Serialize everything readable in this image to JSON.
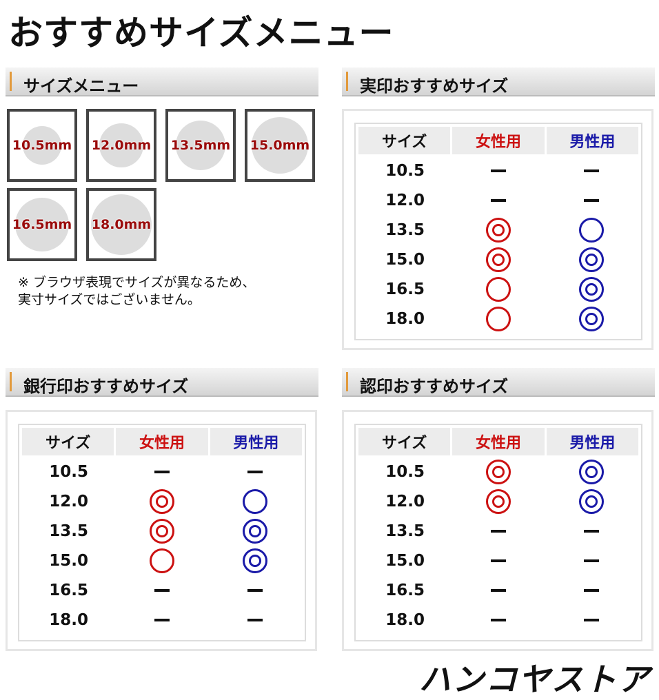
{
  "title": "おすすめサイズメニュー",
  "size_menu": {
    "heading": "サイズメニュー",
    "sizes": [
      "10.5mm",
      "12.0mm",
      "13.5mm",
      "15.0mm",
      "16.5mm",
      "18.0mm"
    ],
    "note_line1": "※ ブラウザ表現でサイズが異なるため、",
    "note_line2": "実寸サイズではございません。"
  },
  "colors": {
    "female": "#cc1111",
    "male": "#1a1aa8",
    "size_label": "#9a0b0b",
    "accent": "#e29a3c"
  },
  "legend_symbols": {
    "double": "◎",
    "single": "○",
    "none": "—"
  },
  "tables": [
    {
      "heading": "実印おすすめサイズ",
      "columns": [
        "サイズ",
        "女性用",
        "男性用"
      ],
      "rows": [
        [
          "10.5",
          "none",
          "none"
        ],
        [
          "12.0",
          "none",
          "none"
        ],
        [
          "13.5",
          "double",
          "single"
        ],
        [
          "15.0",
          "double",
          "double"
        ],
        [
          "16.5",
          "single",
          "double"
        ],
        [
          "18.0",
          "single",
          "double"
        ]
      ]
    },
    {
      "heading": "銀行印おすすめサイズ",
      "columns": [
        "サイズ",
        "女性用",
        "男性用"
      ],
      "rows": [
        [
          "10.5",
          "none",
          "none"
        ],
        [
          "12.0",
          "double",
          "single"
        ],
        [
          "13.5",
          "double",
          "double"
        ],
        [
          "15.0",
          "single",
          "double"
        ],
        [
          "16.5",
          "none",
          "none"
        ],
        [
          "18.0",
          "none",
          "none"
        ]
      ]
    },
    {
      "heading": "認印おすすめサイズ",
      "columns": [
        "サイズ",
        "女性用",
        "男性用"
      ],
      "rows": [
        [
          "10.5",
          "double",
          "double"
        ],
        [
          "12.0",
          "double",
          "double"
        ],
        [
          "13.5",
          "none",
          "none"
        ],
        [
          "15.0",
          "none",
          "none"
        ],
        [
          "16.5",
          "none",
          "none"
        ],
        [
          "18.0",
          "none",
          "none"
        ]
      ]
    }
  ],
  "logo": "ハンコヤストア"
}
